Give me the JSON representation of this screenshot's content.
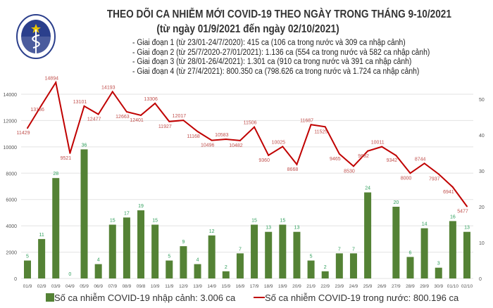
{
  "logo_text": "BỘ Y TẾ - MINISTRY OF HEALTH",
  "title": "THEO DÕI CA NHIỄM MỚI COVID-19 THEO NGÀY TRONG THÁNG 9-10/2021",
  "subtitle": "(từ ngày 01/9/2021 đến ngày 02/10/2021)",
  "notes": [
    "- Giai đoạn 1 (từ 23/01-24/7/2020): 415 ca (106 ca trong nước và 309 ca nhập cảnh)",
    "- Giai đoạn 2 (từ 25/7/2020-27/01/2021): 1.136 ca (554 ca trong nước và 582 ca nhập cảnh)",
    "- Giai đoạn 3 (từ 28/01-26/4/2021): 1.301 ca (910 ca trong nước và 391 ca nhập cảnh)",
    "- Giai đoạn 4 (từ 27/4/2021): 800.350 ca (798.626 ca trong nước và 1.724 ca nhập cảnh)"
  ],
  "chart_data": {
    "type": "bar+line",
    "categories": [
      "01/9",
      "02/9",
      "03/9",
      "04/9",
      "05/9",
      "06/9",
      "07/9",
      "08/9",
      "09/8",
      "10/9",
      "11/9",
      "12/9",
      "13/9",
      "14/9",
      "15/9",
      "16/9",
      "17/9",
      "18/9",
      "19/9",
      "20/9",
      "21/9",
      "22/9",
      "23/9",
      "24/9",
      "25/9",
      "26/9",
      "27/9",
      "28/9",
      "29/9",
      "30/9",
      "01/10",
      "02/10"
    ],
    "series": [
      {
        "name": "Số ca nhiễm COVID-19 nhập cảnh: 3.006 ca",
        "type": "bar",
        "axis": "right",
        "color": "#548235",
        "values": [
          5,
          11,
          28,
          0,
          36,
          4,
          15,
          17,
          19,
          15,
          5,
          9,
          4,
          12,
          2,
          7,
          15,
          13,
          15,
          13,
          5,
          2,
          7,
          7,
          24,
          null,
          20,
          6,
          14,
          3,
          16,
          13
        ]
      },
      {
        "name": "Số ca nhiễm COVID-19 trong nước: 800.196 ca",
        "type": "line",
        "axis": "left",
        "color": "#C00000",
        "values": [
          11429,
          13186,
          14894,
          9521,
          13101,
          12477,
          14193,
          12663,
          12401,
          13306,
          11927,
          12017,
          11168,
          10496,
          10583,
          10482,
          11506,
          9360,
          10025,
          8668,
          11687,
          11525,
          9465,
          8530,
          9682,
          10011,
          9342,
          8000,
          8744,
          7937,
          6941,
          5477
        ]
      }
    ],
    "y_left": {
      "ticks": [
        0,
        2000,
        4000,
        6000,
        8000,
        10000,
        12000,
        14000
      ],
      "range": [
        0,
        14000
      ]
    },
    "y_right": {
      "ticks": [
        0,
        10,
        20,
        30,
        40,
        50
      ],
      "range": [
        0,
        50
      ]
    },
    "grid": true,
    "legend": "bottom"
  }
}
